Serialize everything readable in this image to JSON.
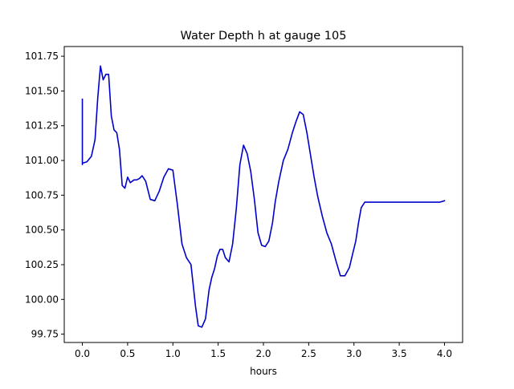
{
  "chart_data": {
    "type": "line",
    "title": "Water Depth h at gauge 105",
    "xlabel": "hours",
    "ylabel": "",
    "xlim": [
      -0.2,
      4.2
    ],
    "ylim": [
      99.69,
      101.82
    ],
    "x_ticks": [
      0.0,
      0.5,
      1.0,
      1.5,
      2.0,
      2.5,
      3.0,
      3.5,
      4.0
    ],
    "x_tick_labels": [
      "0.0",
      "0.5",
      "1.0",
      "1.5",
      "2.0",
      "2.5",
      "3.0",
      "3.5",
      "4.0"
    ],
    "y_ticks": [
      99.75,
      100.0,
      100.25,
      100.5,
      100.75,
      101.0,
      101.25,
      101.5,
      101.75
    ],
    "y_tick_labels": [
      "99.75",
      "100.00",
      "100.25",
      "100.50",
      "100.75",
      "101.00",
      "101.25",
      "101.50",
      "101.75"
    ],
    "grid": false,
    "legend": "none",
    "series": [
      {
        "color": "#0000cc",
        "x": [
          0.0,
          0.0,
          0.0,
          0.05,
          0.1,
          0.14,
          0.17,
          0.2,
          0.23,
          0.26,
          0.29,
          0.32,
          0.35,
          0.38,
          0.41,
          0.44,
          0.47,
          0.5,
          0.53,
          0.57,
          0.6,
          0.63,
          0.66,
          0.7,
          0.75,
          0.8,
          0.85,
          0.9,
          0.95,
          1.0,
          1.05,
          1.1,
          1.15,
          1.2,
          1.25,
          1.28,
          1.32,
          1.36,
          1.4,
          1.43,
          1.46,
          1.49,
          1.52,
          1.55,
          1.58,
          1.62,
          1.66,
          1.7,
          1.74,
          1.78,
          1.82,
          1.86,
          1.9,
          1.94,
          1.98,
          2.02,
          2.06,
          2.1,
          2.13,
          2.17,
          2.22,
          2.27,
          2.32,
          2.36,
          2.4,
          2.44,
          2.48,
          2.52,
          2.56,
          2.6,
          2.65,
          2.7,
          2.75,
          2.8,
          2.85,
          2.9,
          2.95,
          2.99,
          3.02,
          3.05,
          3.08,
          3.12,
          3.16,
          3.2,
          3.25,
          3.3,
          3.35,
          3.4,
          3.45,
          3.5,
          3.54,
          3.57,
          3.6,
          3.63,
          3.66,
          3.7,
          3.75,
          3.8,
          3.85,
          3.9,
          3.95,
          4.0
        ],
        "y": [
          101.44,
          100.97,
          100.98,
          100.99,
          101.03,
          101.15,
          101.45,
          101.68,
          101.58,
          101.62,
          101.62,
          101.32,
          101.22,
          101.2,
          101.08,
          100.82,
          100.8,
          100.88,
          100.84,
          100.86,
          100.86,
          100.87,
          100.89,
          100.85,
          100.72,
          100.71,
          100.78,
          100.88,
          100.94,
          100.93,
          100.68,
          100.4,
          100.3,
          100.25,
          99.95,
          99.81,
          99.8,
          99.86,
          100.07,
          100.16,
          100.22,
          100.31,
          100.36,
          100.36,
          100.3,
          100.27,
          100.4,
          100.65,
          100.97,
          101.11,
          101.05,
          100.92,
          100.72,
          100.48,
          100.39,
          100.38,
          100.42,
          100.55,
          100.7,
          100.85,
          101.0,
          101.08,
          101.2,
          101.28,
          101.35,
          101.33,
          101.2,
          101.04,
          100.88,
          100.74,
          100.6,
          100.48,
          100.4,
          100.28,
          100.17,
          100.17,
          100.23,
          100.34,
          100.42,
          100.55,
          100.66,
          100.7,
          100.7,
          100.7,
          100.7,
          100.7,
          100.7,
          100.7,
          100.7,
          100.7,
          100.7,
          100.7,
          100.7,
          100.7,
          100.7,
          100.7,
          100.7,
          100.7,
          100.7,
          100.7,
          100.7,
          100.71
        ]
      }
    ]
  }
}
